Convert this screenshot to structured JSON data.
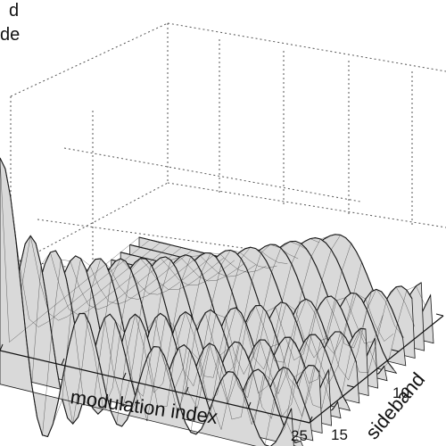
{
  "chart_data": {
    "type": "surface",
    "title_lines": [
      "d",
      "de"
    ],
    "xlabel": "modulation index",
    "ylabel": "sideband",
    "x_ticks": [
      25
    ],
    "y_ticks": [
      10,
      15
    ],
    "xlim": [
      0,
      25
    ],
    "ylim": [
      0,
      15
    ],
    "series": [
      {
        "sideband": 0,
        "peak_index": 2.4,
        "peak_value": 1.0
      },
      {
        "sideband": 1,
        "peak_index": 3.8,
        "peak_value": 0.58
      },
      {
        "sideband": 2,
        "peak_index": 5.1,
        "peak_value": 0.49
      },
      {
        "sideband": 3,
        "peak_index": 6.4,
        "peak_value": 0.43
      },
      {
        "sideband": 4,
        "peak_index": 7.6,
        "peak_value": 0.4
      }
    ],
    "grid": true,
    "colors": {
      "surface": "#d9d9d9",
      "mesh": "#1a1a1a",
      "grid": "#555555"
    }
  }
}
